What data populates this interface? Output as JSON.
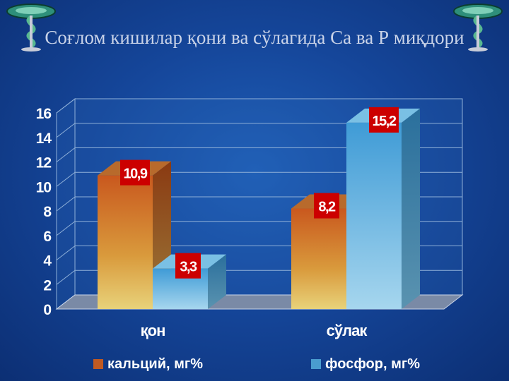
{
  "title": "Соғлом кишилар қони ва сўлагида Са ва Р миқдори",
  "colors": {
    "calcium": "#d97a2a",
    "phosphor": "#5aaed8",
    "label_bg": "#cc0000"
  },
  "chart_data": {
    "type": "bar",
    "title": "Соғлом кишилар қони ва сўлагида Са ва Р миқдори",
    "categories": [
      "қон",
      "сўлак"
    ],
    "series": [
      {
        "name": "кальций, мг%",
        "values": [
          10.9,
          8.2
        ],
        "labels": [
          "10,9",
          "8,2"
        ]
      },
      {
        "name": "фосфор, мг%",
        "values": [
          3.3,
          15.2
        ],
        "labels": [
          "3,3",
          "15,2"
        ]
      }
    ],
    "ylim": [
      0,
      16
    ],
    "yticks": [
      "0",
      "2",
      "4",
      "6",
      "8",
      "10",
      "12",
      "14",
      "16"
    ],
    "grid": true,
    "legend_position": "bottom"
  }
}
